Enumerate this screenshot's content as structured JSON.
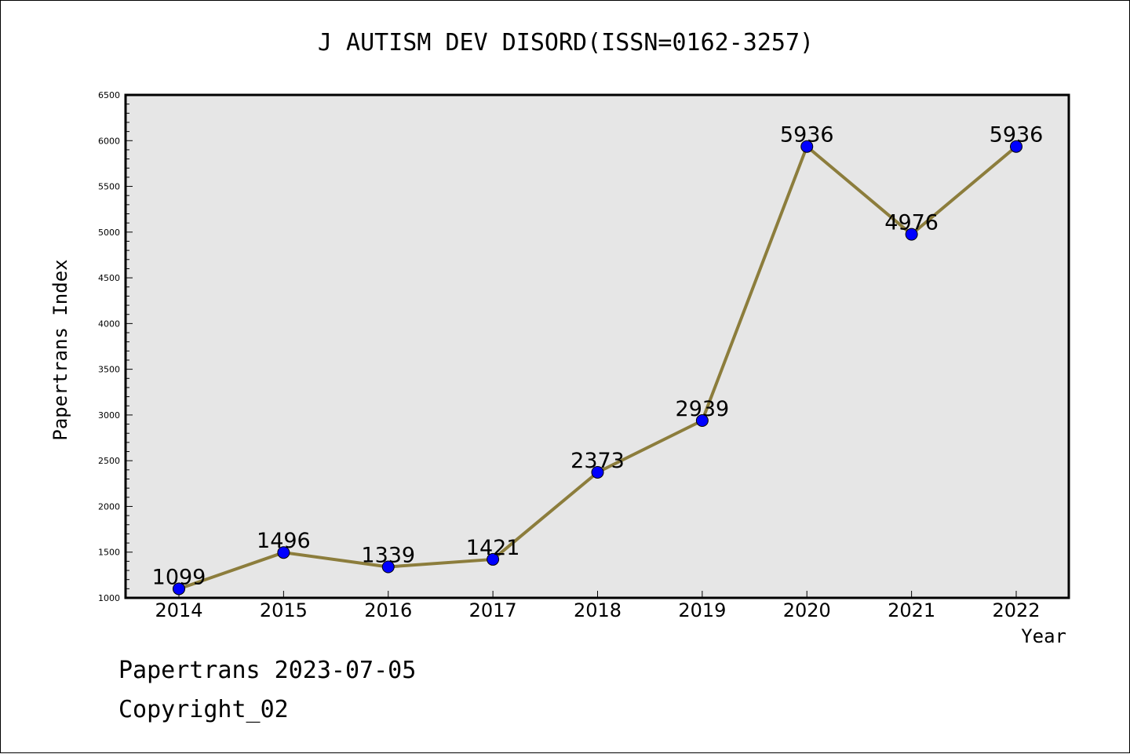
{
  "chart_data": {
    "type": "line",
    "title": "J AUTISM DEV DISORD(ISSN=0162-3257)",
    "xlabel": "Year",
    "ylabel": "Papertrans Index",
    "categories": [
      "2014",
      "2015",
      "2016",
      "2017",
      "2018",
      "2019",
      "2020",
      "2021",
      "2022"
    ],
    "values": [
      1099,
      1496,
      1339,
      1421,
      2373,
      2939,
      5936,
      4976,
      5936
    ],
    "ylim": [
      1000,
      6500
    ],
    "yticks": [
      1000,
      1500,
      2000,
      2500,
      3000,
      3500,
      4000,
      4500,
      5000,
      5500,
      6000,
      6500
    ],
    "grid": false,
    "line_color": "#8c7d3c",
    "marker_color": "#0000ff",
    "plot_background": "#e6e6e6"
  },
  "footer": {
    "line1": "Papertrans 2023-07-05",
    "line2": "Copyright_02"
  }
}
